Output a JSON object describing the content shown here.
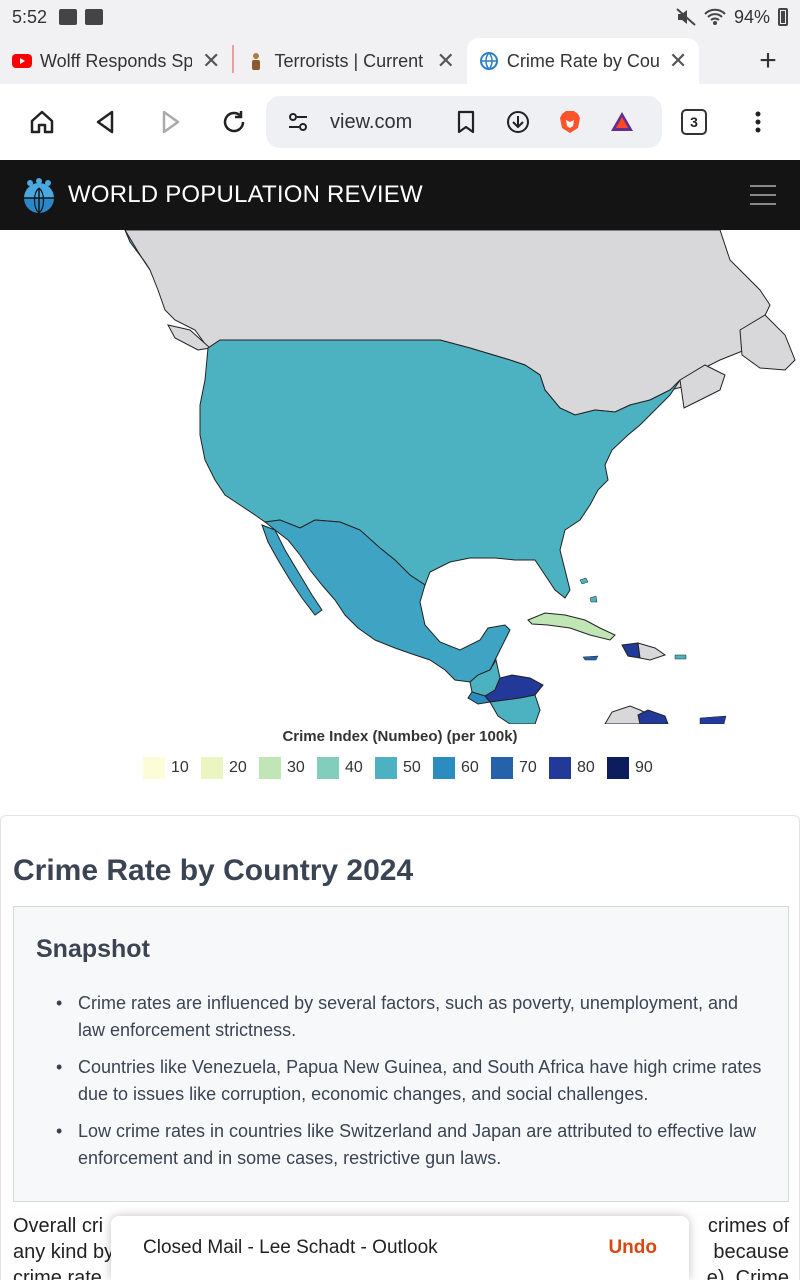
{
  "status_bar": {
    "time": "5:52",
    "battery": "94%"
  },
  "tabs": [
    {
      "title": "Wolff Responds Sp",
      "favicon": "youtube-icon",
      "color": "#ff0000"
    },
    {
      "title": "Terrorists | Current",
      "favicon": "figure-icon",
      "color": "#b07a40"
    },
    {
      "title": "Crime Rate by Coun",
      "favicon": "globe-icon",
      "color": "#2a7fc8",
      "active": true
    }
  ],
  "toolbar": {
    "url": "view.com",
    "tab_count": "3"
  },
  "site": {
    "name": "WORLD POPULATION REVIEW"
  },
  "legend": {
    "title": "Crime Index (Numbeo) (per 100k)",
    "items": [
      {
        "label": "10",
        "color": "#fdfcd9"
      },
      {
        "label": "20",
        "color": "#ebf5c2"
      },
      {
        "label": "30",
        "color": "#c1e6b6"
      },
      {
        "label": "40",
        "color": "#82cdbb"
      },
      {
        "label": "50",
        "color": "#4cb2c2"
      },
      {
        "label": "60",
        "color": "#2b8dbf"
      },
      {
        "label": "70",
        "color": "#2562ab"
      },
      {
        "label": "80",
        "color": "#22399a"
      },
      {
        "label": "90",
        "color": "#0c1c5c"
      }
    ]
  },
  "article": {
    "title": "Crime Rate by Country 2024",
    "snapshot_title": "Snapshot",
    "bullets": [
      "Crime rates are influenced by several factors, such as poverty, unemployment, and law enforcement strictness.",
      "Countries like Venezuela, Papua New Guinea, and South Africa have high crime rates due to issues like corruption, economic changes, and social challenges.",
      "Low crime rates in countries like Switzerland and Japan are attributed to effective law enforcement and in some cases, restrictive gun laws."
    ],
    "body_line1_left": "Overall cri",
    "body_line1_right": "crimes of",
    "body_line2_left": "any kind by",
    "body_line2_right": "because",
    "body_line3_left": "crime rate",
    "body_line3_right": "e). Crime"
  },
  "toast": {
    "message": "Closed Mail - Lee Schadt - Outlook",
    "action": "Undo"
  }
}
